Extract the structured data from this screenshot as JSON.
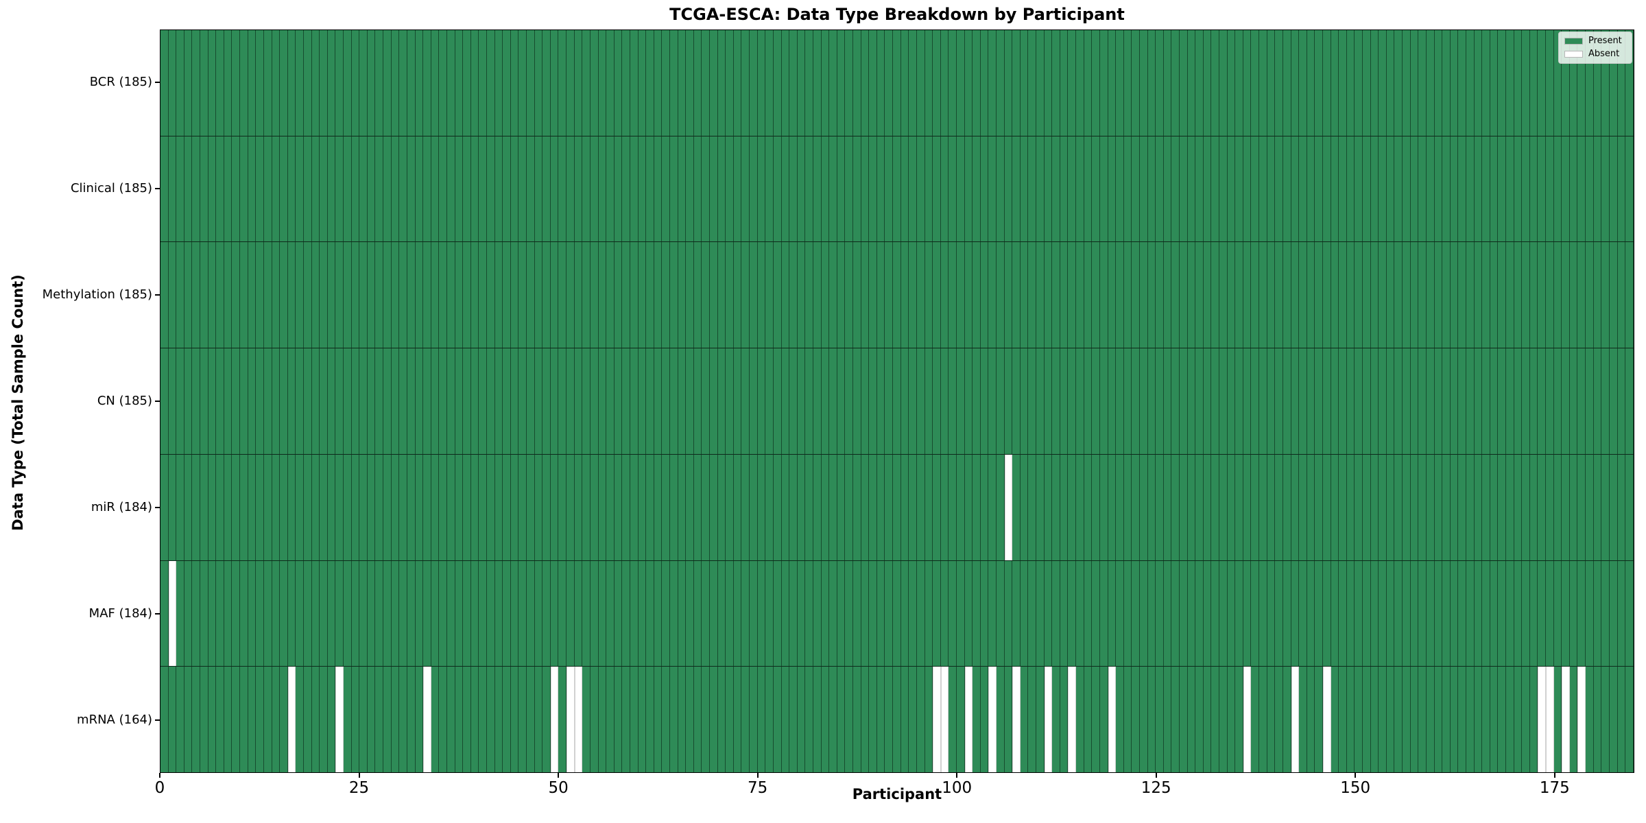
{
  "chart_data": {
    "type": "heatmap",
    "title": "TCGA-ESCA: Data Type Breakdown by Participant",
    "xlabel": "Participant",
    "ylabel": "Data Type (Total Sample Count)",
    "n_participants": 185,
    "xlim": [
      0,
      185
    ],
    "x_tick_values": [
      0,
      25,
      50,
      75,
      100,
      125,
      150,
      175
    ],
    "grid": false,
    "legend_position": "top-right",
    "colors": {
      "present": "#2e8b57",
      "absent": "#ffffff"
    },
    "legend": [
      {
        "label": "Present",
        "key": "present"
      },
      {
        "label": "Absent",
        "key": "absent"
      }
    ],
    "rows": [
      {
        "name": "BCR",
        "label": "BCR (185)",
        "total_samples": 185,
        "absent_participants": []
      },
      {
        "name": "Clinical",
        "label": "Clinical (185)",
        "total_samples": 185,
        "absent_participants": []
      },
      {
        "name": "Methylation",
        "label": "Methylation (185)",
        "total_samples": 185,
        "absent_participants": []
      },
      {
        "name": "CN",
        "label": "CN (185)",
        "total_samples": 185,
        "absent_participants": []
      },
      {
        "name": "miR",
        "label": "miR (184)",
        "total_samples": 184,
        "absent_participants": [
          107
        ]
      },
      {
        "name": "MAF",
        "label": "MAF (184)",
        "total_samples": 184,
        "absent_participants": [
          2
        ]
      },
      {
        "name": "mRNA",
        "label": "mRNA (164)",
        "total_samples": 164,
        "absent_participants": [
          17,
          23,
          34,
          50,
          52,
          53,
          98,
          99,
          102,
          105,
          108,
          112,
          115,
          120,
          137,
          143,
          147,
          174,
          175,
          177,
          179
        ]
      }
    ]
  }
}
